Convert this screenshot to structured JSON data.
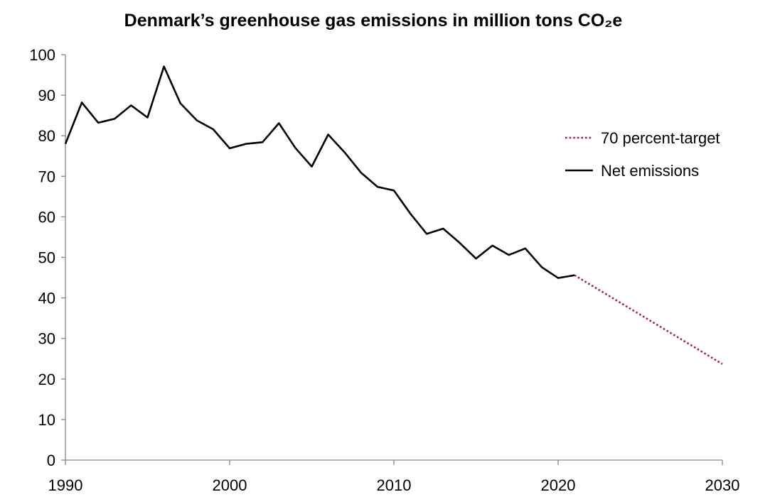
{
  "chart_data": {
    "type": "line",
    "title": "Denmark’s greenhouse gas emissions in million tons CO₂e",
    "xlabel": "",
    "ylabel": "",
    "xlim": [
      1990,
      2030
    ],
    "ylim": [
      0,
      100
    ],
    "x_ticks": [
      "1990",
      "2000",
      "2010",
      "2020",
      "2030"
    ],
    "y_ticks": [
      "0",
      "10",
      "20",
      "30",
      "40",
      "50",
      "60",
      "70",
      "80",
      "90",
      "100"
    ],
    "grid": false,
    "legend_position": "right",
    "series": [
      {
        "name": "Net emissions",
        "color": "#000000",
        "style": "solid",
        "x": [
          1990,
          1991,
          1992,
          1993,
          1994,
          1995,
          1996,
          1997,
          1998,
          1999,
          2000,
          2001,
          2002,
          2003,
          2004,
          2005,
          2006,
          2007,
          2008,
          2009,
          2010,
          2011,
          2012,
          2013,
          2014,
          2015,
          2016,
          2017,
          2018,
          2019,
          2020,
          2021
        ],
        "y": [
          78,
          88.2,
          83.2,
          84.2,
          87.5,
          84.5,
          97.1,
          88,
          83.8,
          81.6,
          76.9,
          78,
          78.4,
          83.1,
          77,
          72.4,
          80.3,
          75.9,
          70.9,
          67.4,
          66.5,
          60.8,
          55.8,
          57.1,
          53.6,
          49.7,
          52.9,
          50.6,
          52.2,
          47.6,
          44.9,
          45.6
        ]
      },
      {
        "name": "70 percent-target",
        "color": "#A52145",
        "style": "dotted",
        "x": [
          2021,
          2030
        ],
        "y": [
          45.6,
          23.7
        ]
      }
    ]
  }
}
